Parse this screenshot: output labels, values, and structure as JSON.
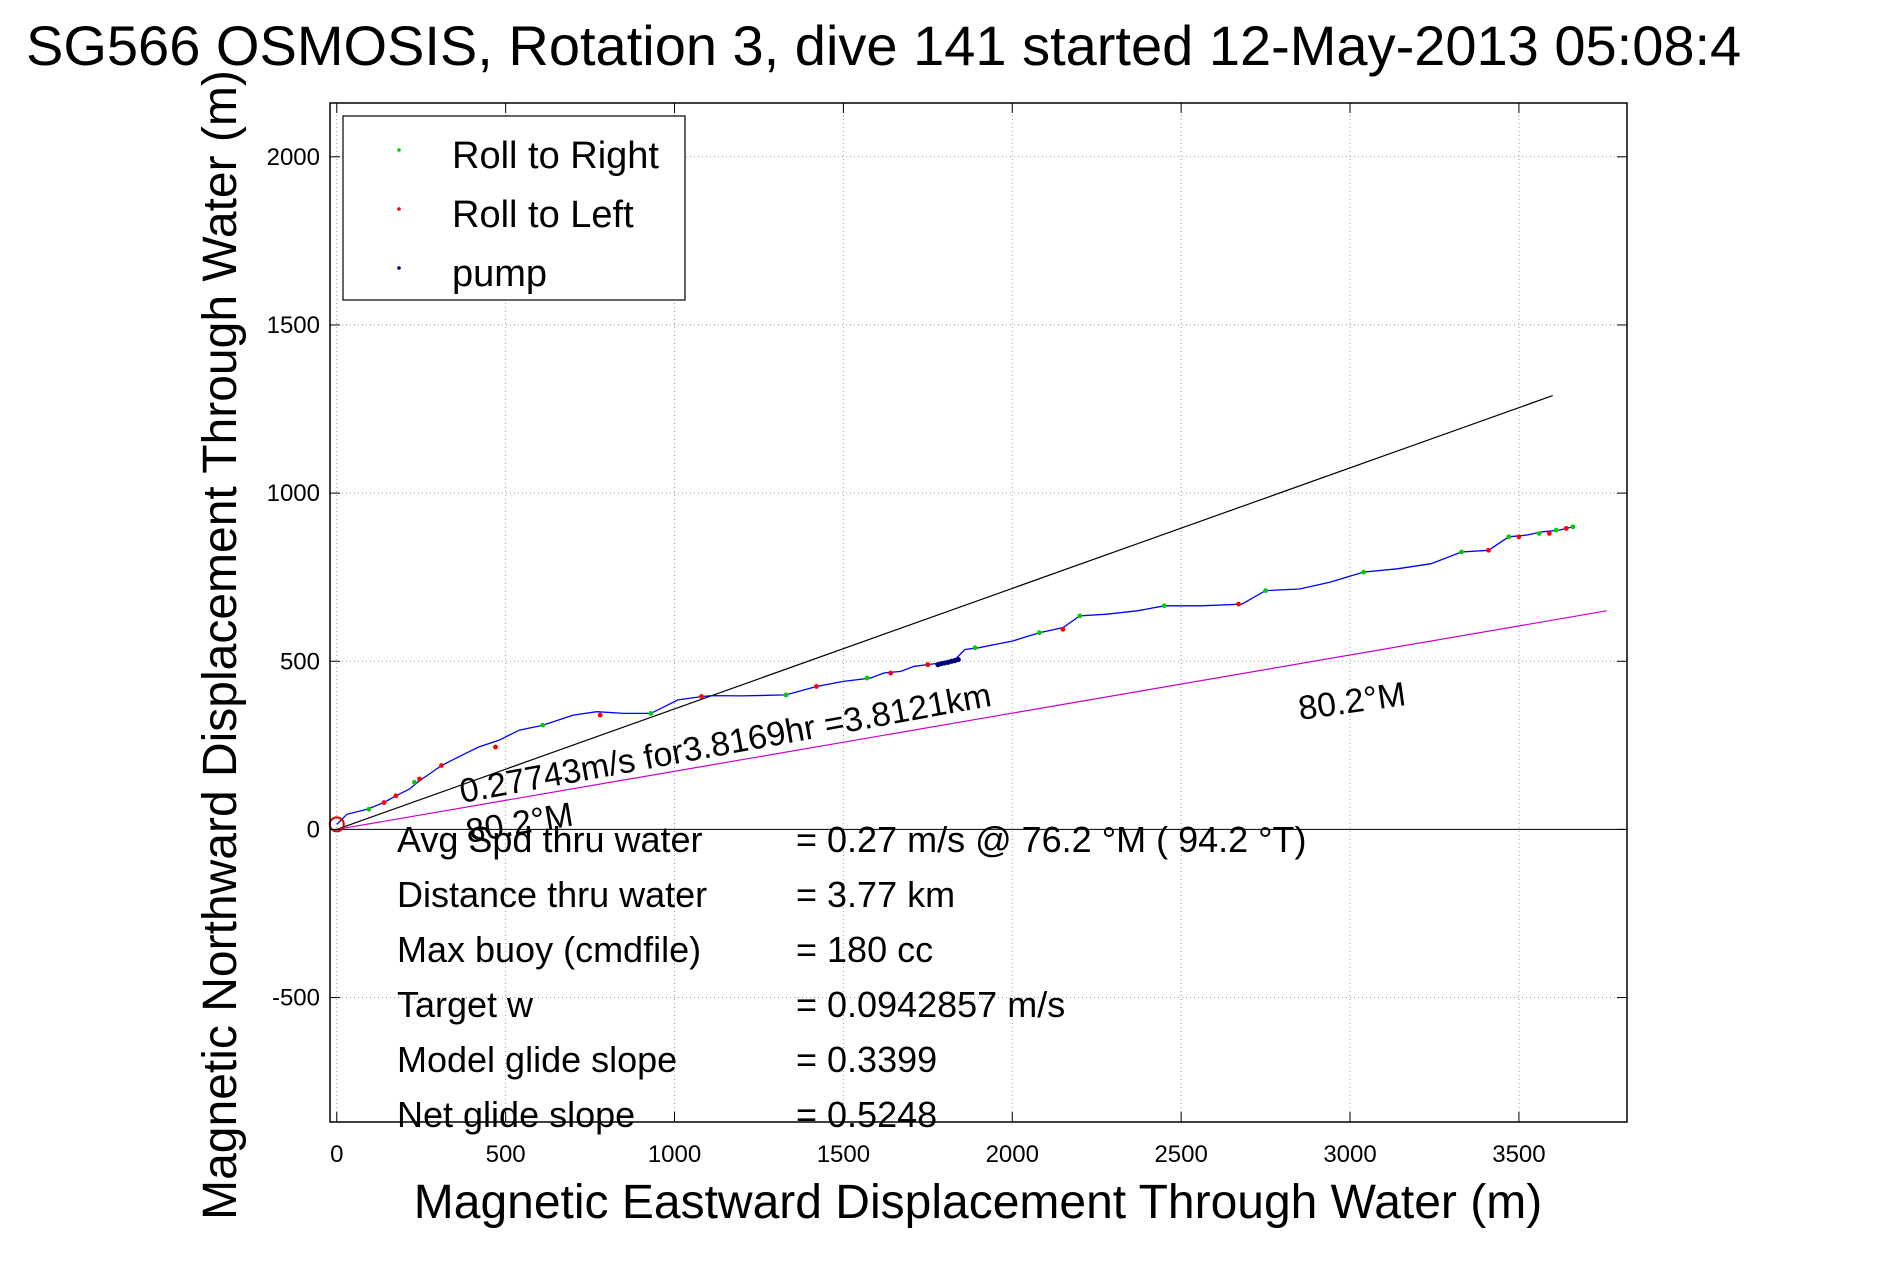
{
  "colors": {
    "track": "#0000ff",
    "roll_right": "#00cc00",
    "roll_left": "#ff0000",
    "pump": "#000080",
    "heading_line": "#000000",
    "fit_line": "#cc00cc",
    "start_marker": "#cc0000"
  },
  "chart_data": {
    "type": "line",
    "title": "SG566 OSMOSIS, Rotation 3, dive 141 started 12-May-2013 05:08:4",
    "xlabel": "Magnetic Eastward Displacement Through Water (m)",
    "ylabel": "Magnetic Northward Displacement Through Water (m)",
    "xlim": [
      -20,
      3820
    ],
    "ylim": [
      -870,
      2160
    ],
    "xticks": [
      0,
      500,
      1000,
      1500,
      2000,
      2500,
      3000,
      3500
    ],
    "yticks": [
      -500,
      0,
      500,
      1000,
      1500,
      2000
    ],
    "xtick_labels": [
      "0",
      "500",
      "1000",
      "1500",
      "2000",
      "2500",
      "3000",
      "3500"
    ],
    "ytick_labels": [
      "-500",
      "0",
      "500",
      "1000",
      "1500",
      "2000"
    ],
    "grid": true,
    "legend": {
      "position": "top-left",
      "entries": [
        "Roll to Right",
        "Roll to Left",
        "pump"
      ]
    },
    "series": [
      {
        "name": "track",
        "x": [
          0,
          30,
          90,
          140,
          175,
          215,
          245,
          275,
          310,
          360,
          420,
          480,
          540,
          610,
          700,
          770,
          850,
          930,
          1010,
          1080,
          1110,
          1200,
          1330,
          1420,
          1500,
          1580,
          1620,
          1670,
          1710,
          1750,
          1790,
          1830,
          1860,
          1900,
          1950,
          2000,
          2080,
          2150,
          2200,
          2280,
          2370,
          2450,
          2560,
          2680,
          2750,
          2850,
          2940,
          3040,
          3140,
          3240,
          3330,
          3410,
          3470,
          3520,
          3570,
          3620,
          3660
        ],
        "y": [
          15,
          45,
          60,
          80,
          100,
          120,
          145,
          165,
          190,
          215,
          245,
          265,
          295,
          310,
          340,
          350,
          345,
          345,
          385,
          395,
          398,
          397,
          400,
          425,
          440,
          450,
          465,
          470,
          485,
          490,
          495,
          505,
          535,
          540,
          550,
          560,
          585,
          600,
          635,
          640,
          650,
          665,
          665,
          670,
          710,
          715,
          735,
          765,
          775,
          790,
          825,
          830,
          870,
          875,
          885,
          890,
          900
        ]
      },
      {
        "name": "Roll to Right",
        "x": [
          95,
          230,
          470,
          610,
          930,
          1080,
          1330,
          1570,
          1750,
          1890,
          2080,
          2200,
          2450,
          2750,
          3040,
          3330,
          3470,
          3560,
          3610,
          3660
        ],
        "y": [
          60,
          140,
          245,
          310,
          345,
          395,
          400,
          450,
          490,
          540,
          585,
          635,
          665,
          710,
          765,
          825,
          870,
          880,
          890,
          900
        ]
      },
      {
        "name": "Roll to Left",
        "x": [
          140,
          175,
          245,
          310,
          470,
          780,
          1080,
          1420,
          1640,
          1750,
          2150,
          2670,
          3410,
          3500,
          3590,
          3640
        ],
        "y": [
          80,
          100,
          150,
          190,
          245,
          340,
          395,
          425,
          465,
          490,
          595,
          670,
          830,
          870,
          880,
          895
        ]
      },
      {
        "name": "pump",
        "x": [
          1780,
          1790,
          1800,
          1810,
          1820,
          1830,
          1840
        ],
        "y": [
          490,
          493,
          495,
          497,
          500,
          502,
          505
        ]
      }
    ],
    "lines": [
      {
        "name": "heading",
        "x": [
          0,
          3600
        ],
        "y": [
          0,
          1290
        ]
      },
      {
        "name": "fit",
        "x": [
          0,
          3760
        ],
        "y": [
          0,
          650
        ]
      }
    ],
    "annotations": {
      "speed": "0.27743m/s for3.8169hr =3.8121km",
      "heading_near": "80.2°M",
      "heading_far": "80.2°M"
    },
    "stats": [
      {
        "label": "Avg Spd thru water",
        "value": "=  0.27 m/s @  76.2 °M ( 94.2 °T)"
      },
      {
        "label": "Distance thru water",
        "value": "=  3.77 km"
      },
      {
        "label": "Max buoy (cmdfile)",
        "value": "= 180 cc"
      },
      {
        "label": "Target w",
        "value": "= 0.0942857 m/s"
      },
      {
        "label": "Model glide slope",
        "value": "= 0.3399"
      },
      {
        "label": "Net glide slope",
        "value": "= 0.5248"
      }
    ]
  }
}
